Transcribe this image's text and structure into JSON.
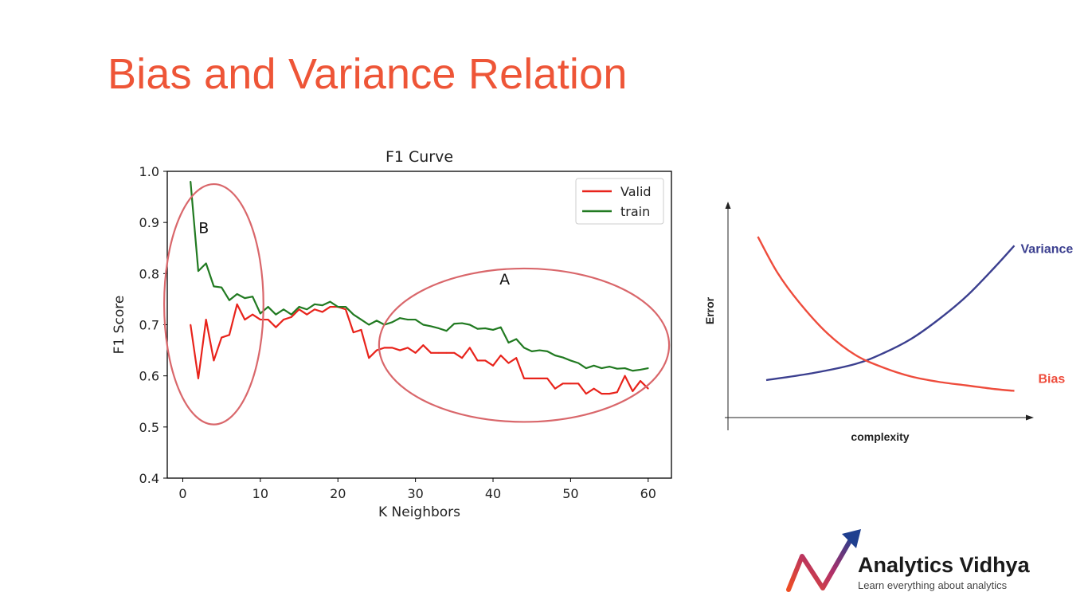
{
  "slide": {
    "title": "Bias and Variance Relation"
  },
  "colors": {
    "title": "#ee5537",
    "valid": "#e8231b",
    "train": "#217a21",
    "annotation": "#d9676b",
    "variance": "#3b3f8f",
    "bias": "#ee4c3c"
  },
  "chart_data": [
    {
      "type": "line",
      "title": "F1 Curve",
      "xlabel": "K Neighbors",
      "ylabel": "F1 Score",
      "xlim": [
        -2,
        63
      ],
      "ylim": [
        0.4,
        1.0
      ],
      "xticks": [
        0,
        10,
        20,
        30,
        40,
        50,
        60
      ],
      "yticks": [
        0.4,
        0.5,
        0.6,
        0.7,
        0.8,
        0.9,
        1.0
      ],
      "legend_position": "top-right",
      "series": [
        {
          "name": "Valid",
          "color": "#e8231b",
          "x": [
            1,
            2,
            3,
            4,
            5,
            6,
            7,
            8,
            9,
            10,
            11,
            12,
            13,
            14,
            15,
            16,
            17,
            18,
            19,
            20,
            21,
            22,
            23,
            24,
            25,
            26,
            27,
            28,
            29,
            30,
            31,
            32,
            33,
            34,
            35,
            36,
            37,
            38,
            39,
            40,
            41,
            42,
            43,
            44,
            45,
            46,
            47,
            48,
            49,
            50,
            51,
            52,
            53,
            54,
            55,
            56,
            57,
            58,
            59,
            60
          ],
          "y": [
            0.7,
            0.595,
            0.71,
            0.63,
            0.675,
            0.68,
            0.74,
            0.71,
            0.72,
            0.71,
            0.71,
            0.695,
            0.71,
            0.715,
            0.73,
            0.72,
            0.73,
            0.725,
            0.735,
            0.735,
            0.73,
            0.685,
            0.69,
            0.635,
            0.65,
            0.655,
            0.655,
            0.65,
            0.655,
            0.645,
            0.66,
            0.645,
            0.645,
            0.645,
            0.645,
            0.635,
            0.655,
            0.63,
            0.63,
            0.62,
            0.64,
            0.625,
            0.635,
            0.595,
            0.595,
            0.595,
            0.595,
            0.575,
            0.585,
            0.585,
            0.585,
            0.565,
            0.575,
            0.565,
            0.565,
            0.568,
            0.6,
            0.57,
            0.59,
            0.575
          ]
        },
        {
          "name": "train",
          "color": "#217a21",
          "x": [
            1,
            2,
            3,
            4,
            5,
            6,
            7,
            8,
            9,
            10,
            11,
            12,
            13,
            14,
            15,
            16,
            17,
            18,
            19,
            20,
            21,
            22,
            23,
            24,
            25,
            26,
            27,
            28,
            29,
            30,
            31,
            32,
            33,
            34,
            35,
            36,
            37,
            38,
            39,
            40,
            41,
            42,
            43,
            44,
            45,
            46,
            47,
            48,
            49,
            50,
            51,
            52,
            53,
            54,
            55,
            56,
            57,
            58,
            59,
            60
          ],
          "y": [
            0.98,
            0.805,
            0.82,
            0.775,
            0.773,
            0.748,
            0.76,
            0.752,
            0.755,
            0.722,
            0.735,
            0.72,
            0.73,
            0.72,
            0.735,
            0.73,
            0.74,
            0.738,
            0.745,
            0.735,
            0.735,
            0.72,
            0.71,
            0.7,
            0.708,
            0.7,
            0.705,
            0.713,
            0.71,
            0.71,
            0.7,
            0.697,
            0.693,
            0.688,
            0.702,
            0.703,
            0.7,
            0.692,
            0.693,
            0.69,
            0.695,
            0.665,
            0.672,
            0.655,
            0.648,
            0.65,
            0.648,
            0.64,
            0.636,
            0.63,
            0.625,
            0.615,
            0.62,
            0.615,
            0.618,
            0.614,
            0.615,
            0.61,
            0.612,
            0.615
          ]
        }
      ],
      "annotations": [
        {
          "label": "B",
          "x": 2.7,
          "y": 0.89
        },
        {
          "label": "A",
          "x": 41.5,
          "y": 0.79
        }
      ],
      "highlight_ellipses": [
        {
          "cx": 4,
          "cy": 0.74,
          "rx": 6.4,
          "ry": 0.235
        },
        {
          "cx": 44,
          "cy": 0.66,
          "rx": 18.7,
          "ry": 0.15
        }
      ]
    },
    {
      "type": "line",
      "xlabel": "complexity",
      "ylabel": "Error",
      "xlim": [
        0,
        1
      ],
      "ylim": [
        0,
        1
      ],
      "axes_style": "arrows, no ticks",
      "series": [
        {
          "name": "Variance",
          "color": "#3b3f8f",
          "x": [
            0.08,
            0.25,
            0.4,
            0.5,
            0.6,
            0.7,
            0.8,
            0.9,
            0.97
          ],
          "y": [
            0.12,
            0.16,
            0.21,
            0.27,
            0.35,
            0.46,
            0.59,
            0.75,
            0.87
          ]
        },
        {
          "name": "Bias",
          "color": "#ee4c3c",
          "x": [
            0.05,
            0.12,
            0.2,
            0.3,
            0.4,
            0.5,
            0.6,
            0.7,
            0.8,
            0.9,
            0.97
          ],
          "y": [
            0.92,
            0.72,
            0.55,
            0.38,
            0.26,
            0.19,
            0.14,
            0.11,
            0.09,
            0.07,
            0.06
          ]
        }
      ]
    }
  ],
  "logo": {
    "name": "Analytics Vidhya",
    "tagline": "Learn everything about analytics"
  }
}
